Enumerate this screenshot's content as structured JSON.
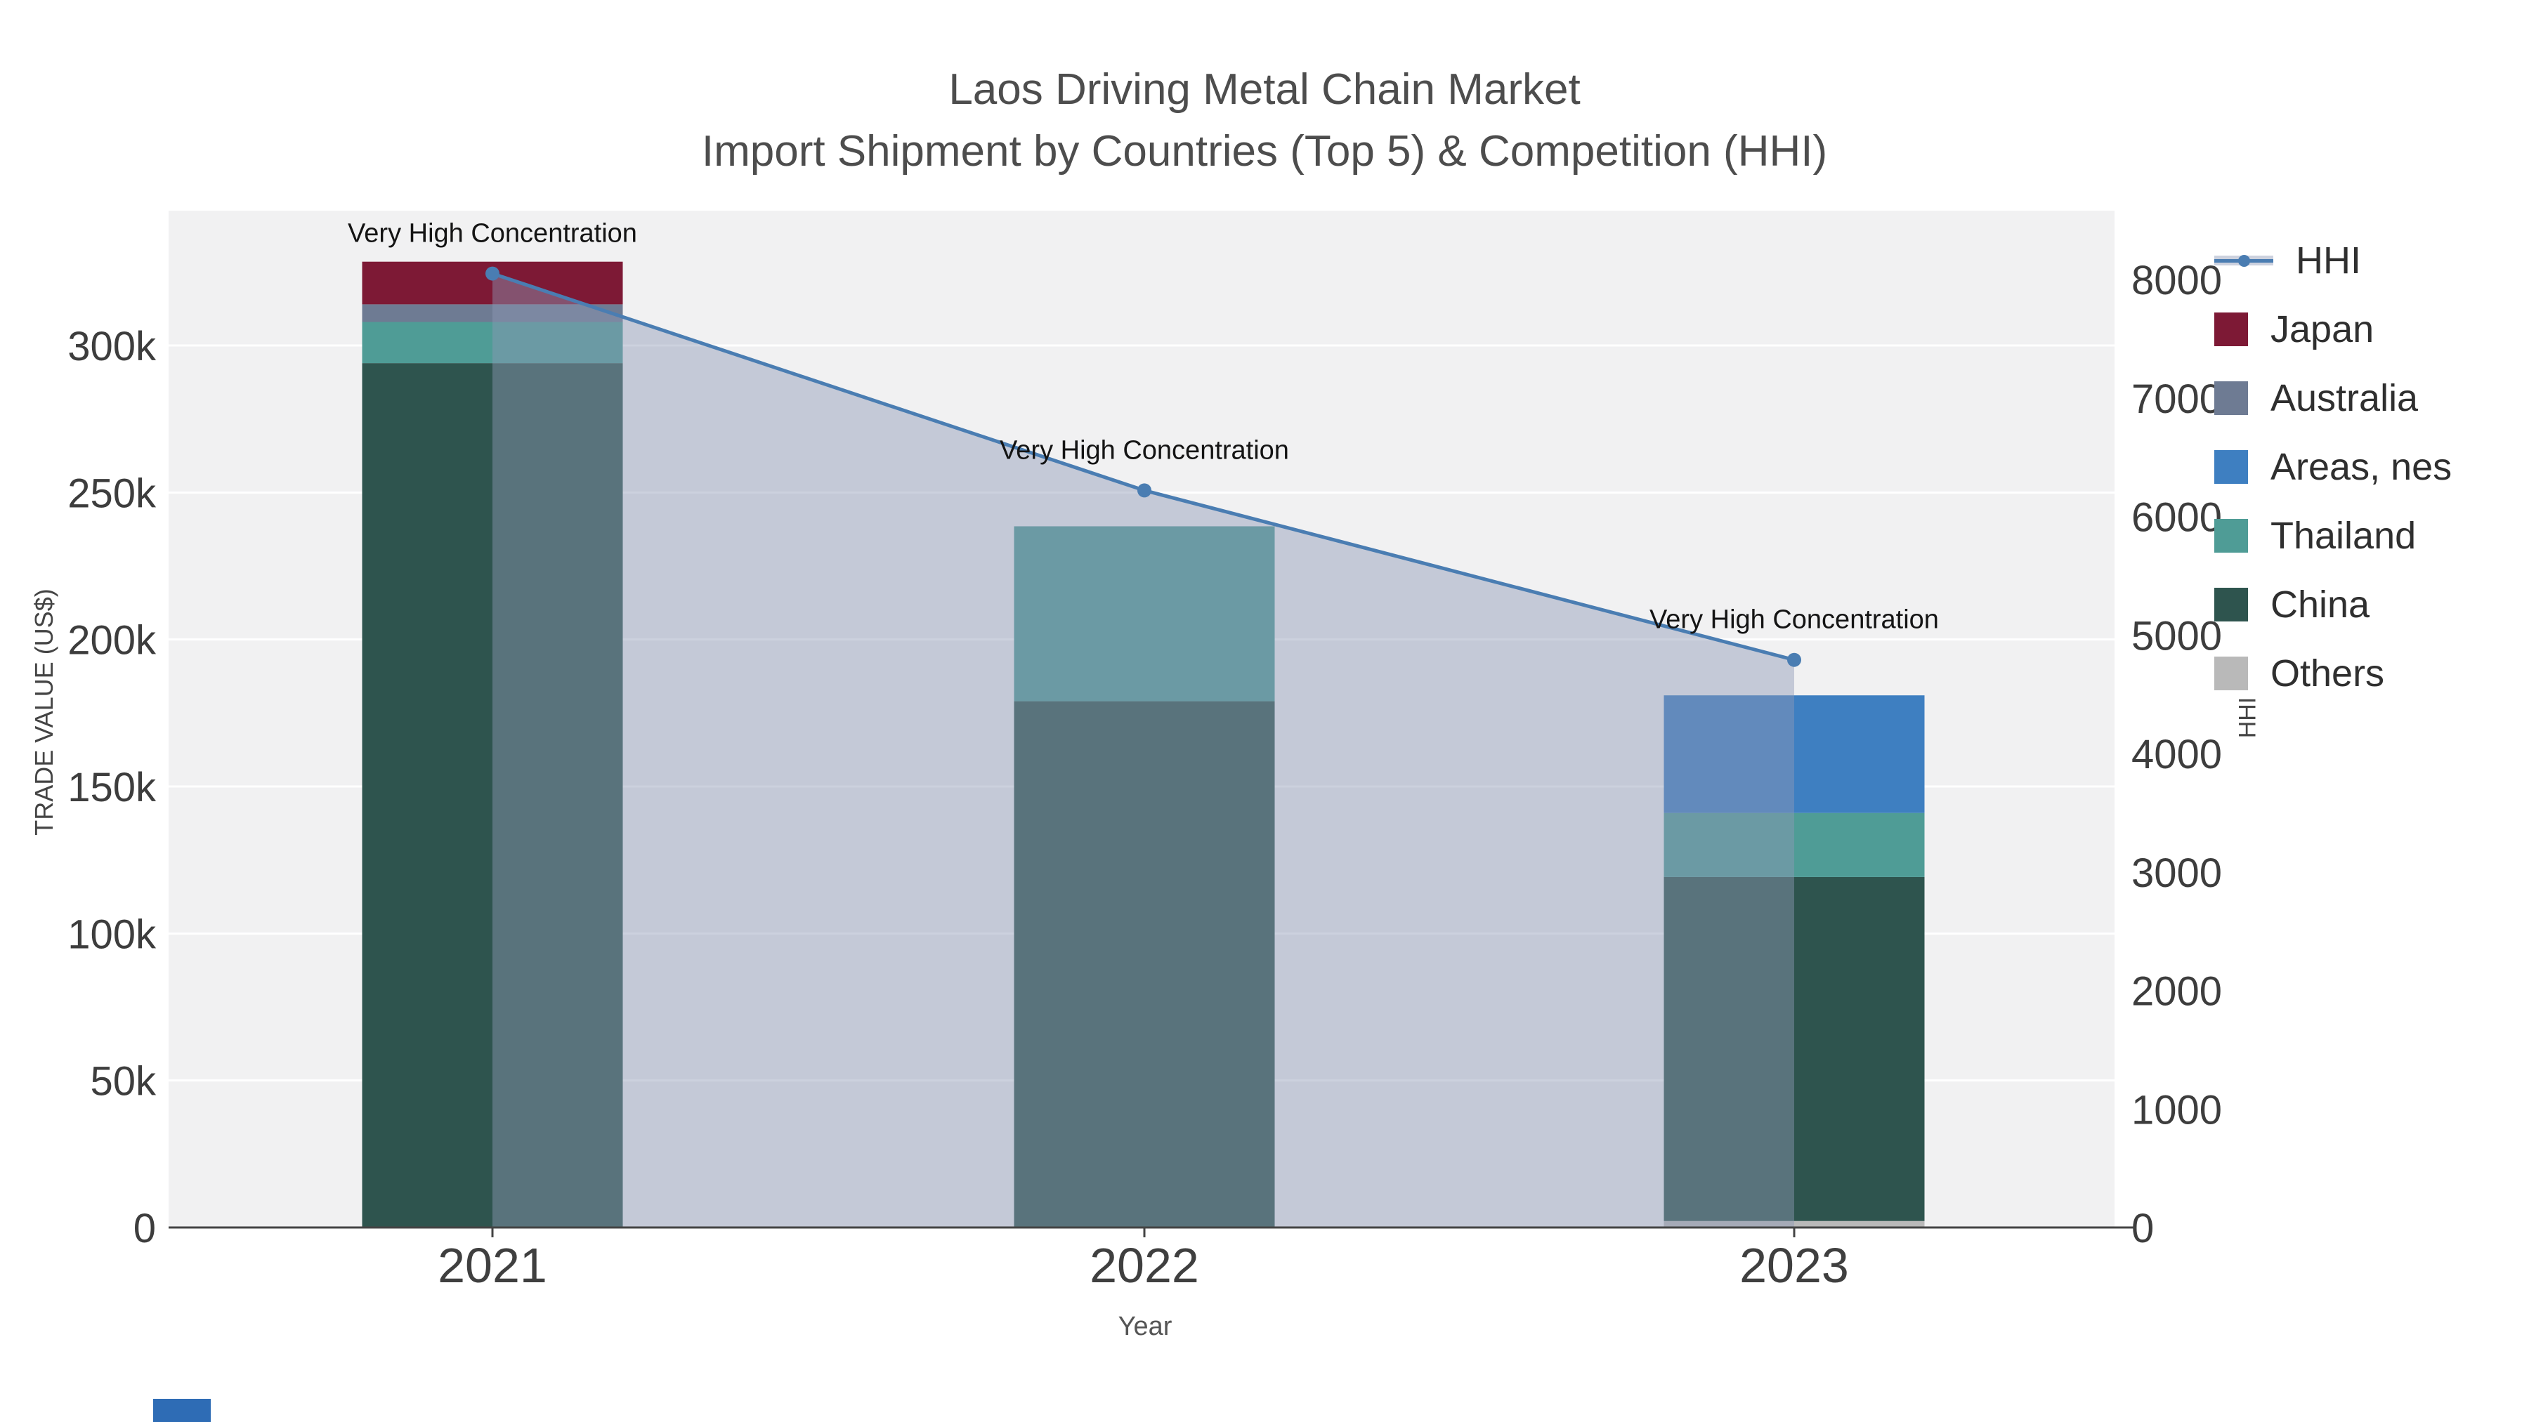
{
  "header": {
    "title_line1": "Laos Driving Metal Chain Market",
    "title_line2": "Import Shipment by Countries (Top 5) & Competition (HHI)"
  },
  "axes": {
    "x_title": "Year",
    "y_left_title": "TRADE VALUE (US$)",
    "y_right_title": "HHI"
  },
  "chart_data": {
    "type": "bar",
    "subtype": "stacked-bars-with-hhi-line-overlay",
    "categories": [
      "2021",
      "2022",
      "2023"
    ],
    "bar_series": [
      {
        "name": "Others",
        "color": "#b9b9b9",
        "values": [
          0,
          0,
          2200
        ]
      },
      {
        "name": "China",
        "color": "#2e544e",
        "values": [
          294000,
          179000,
          117000
        ]
      },
      {
        "name": "Thailand",
        "color": "#4f9c96",
        "values": [
          14000,
          59500,
          21800
        ]
      },
      {
        "name": "Areas, nes",
        "color": "#3e7fc1",
        "values": [
          0,
          0,
          40000
        ]
      },
      {
        "name": "Australia",
        "color": "#6e7b93",
        "values": [
          6000,
          0,
          0
        ]
      },
      {
        "name": "Japan",
        "color": "#7d1935",
        "values": [
          14500,
          0,
          0
        ]
      }
    ],
    "bar_totals": [
      328500,
      238500,
      181000
    ],
    "line_series": {
      "name": "HHI",
      "color": "#4a7db2",
      "area_fill": "#8f9ab5",
      "values": [
        8050,
        6220,
        4790
      ]
    },
    "annotations": [
      {
        "text": "Very High Concentration",
        "category": "2021"
      },
      {
        "text": "Very High Concentration",
        "category": "2022"
      },
      {
        "text": "Very High Concentration",
        "category": "2023"
      }
    ],
    "y_left": {
      "tick_labels": [
        "0",
        "50k",
        "100k",
        "150k",
        "200k",
        "250k",
        "300k"
      ],
      "tick_values": [
        0,
        50000,
        100000,
        150000,
        200000,
        250000,
        300000
      ],
      "range": [
        0,
        345800
      ],
      "grid": true
    },
    "y_right": {
      "tick_labels": [
        "0",
        "1000",
        "2000",
        "3000",
        "4000",
        "5000",
        "6000",
        "7000",
        "8000"
      ],
      "tick_values": [
        0,
        1000,
        2000,
        3000,
        4000,
        5000,
        6000,
        7000,
        8000
      ],
      "range": [
        0,
        8585
      ],
      "grid": false
    },
    "legend_position": "right"
  },
  "legend": {
    "items": [
      {
        "label": "HHI",
        "type": "line",
        "color": "#4a7db2"
      },
      {
        "label": "Japan",
        "type": "swatch",
        "color": "#7d1935"
      },
      {
        "label": "Australia",
        "type": "swatch",
        "color": "#6e7b93"
      },
      {
        "label": "Areas, nes",
        "type": "swatch",
        "color": "#3e7fc1"
      },
      {
        "label": "Thailand",
        "type": "swatch",
        "color": "#4f9c96"
      },
      {
        "label": "China",
        "type": "swatch",
        "color": "#2e544e"
      },
      {
        "label": "Others",
        "type": "swatch",
        "color": "#b9b9b9"
      }
    ]
  }
}
